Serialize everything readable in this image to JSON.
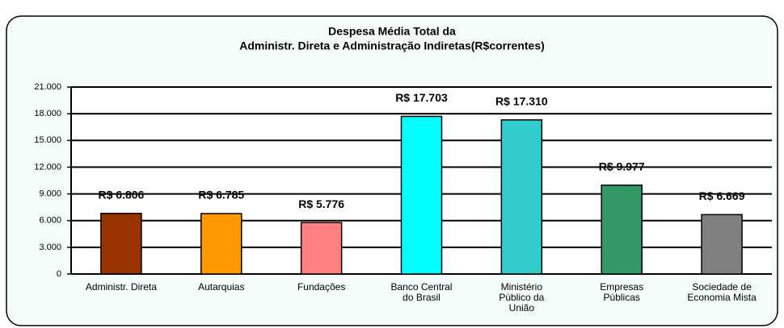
{
  "chart_data": {
    "type": "bar",
    "title": "Despesa Média Total da",
    "subtitle": "Administr. Direta e Administração Indiretas(R$correntes)",
    "categories": [
      "Administr. Direta",
      "Autarquias",
      "Fundações",
      "Banco Central do Brasil",
      "Ministério Público da União",
      "Empresas Públicas",
      "Sociedade de Economia Mista"
    ],
    "values": [
      6806,
      6785,
      5776,
      17703,
      17310,
      9977,
      6669
    ],
    "value_labels": [
      "R$ 6.806",
      "R$ 6.785",
      "R$ 5.776",
      "R$ 17.703",
      "R$ 17.310",
      "R$ 9.977",
      "R$ 6.669"
    ],
    "colors": [
      "#993300",
      "#ff9900",
      "#ff8080",
      "#00ffff",
      "#33cccc",
      "#339966",
      "#808080"
    ],
    "ylim": [
      0,
      21000
    ],
    "yticks": [
      0,
      {
        "value": 3000,
        "label": "3.000"
      },
      {
        "value": 6000,
        "label": "6.000"
      },
      {
        "value": 9000,
        "label": "9.000"
      },
      {
        "value": 12000,
        "label": "12.000"
      },
      {
        "value": 15000,
        "label": "15.000"
      },
      {
        "value": 18000,
        "label": "18.000"
      },
      {
        "value": 21000,
        "label": "21.000"
      }
    ],
    "grid": true
  }
}
